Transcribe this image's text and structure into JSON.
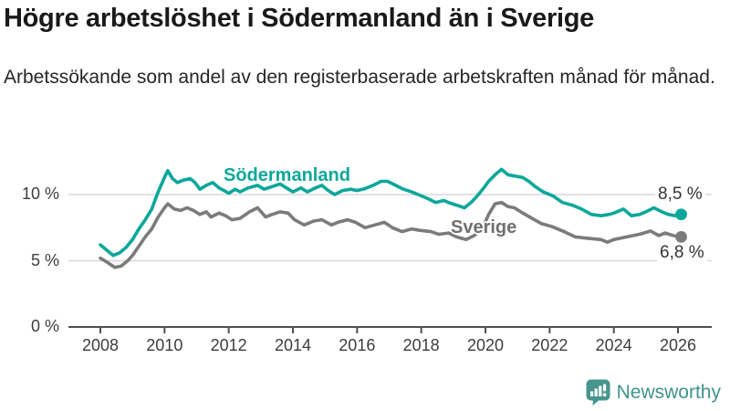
{
  "header": {
    "title": "Högre arbetslöshet i Södermanland än i Sverige",
    "subtitle": "Arbetssökande som andel av den registerbaserade arbetskraften månad för månad."
  },
  "colors": {
    "sodermanland_line": "#0ba79b",
    "sverige_line": "#7b7b7b",
    "grid": "#d8d8d8",
    "axis": "#4f4f4f",
    "logo_teal": "#46958e",
    "logo_text_teal": "#3f948d"
  },
  "chart_data": {
    "type": "line",
    "title": "Högre arbetslöshet i Södermanland än i Sverige",
    "subtitle": "Arbetssökande som andel av den registerbaserade arbetskraften månad för månad.",
    "xlabel": "",
    "ylabel": "",
    "grid": true,
    "legend_position": "inline-labels-on-lines",
    "xlim": [
      2007,
      2027
    ],
    "ylim": [
      0,
      12.5
    ],
    "x_axis": {
      "ticks": [
        2008,
        2010,
        2012,
        2014,
        2016,
        2018,
        2020,
        2022,
        2024,
        2026
      ],
      "tick_labels": [
        "2008",
        "2010",
        "2012",
        "2014",
        "2016",
        "2018",
        "2020",
        "2022",
        "2024",
        "2026"
      ]
    },
    "y_axis": {
      "ticks": [
        {
          "value": 10,
          "label": "10 %"
        },
        {
          "value": 5,
          "label": "5 %"
        },
        {
          "value": 0,
          "label": "0 %"
        }
      ]
    },
    "series": [
      {
        "name": "Södermanland",
        "color": "#0ba79b",
        "end_label": "8,5 %",
        "end_value": 8.5,
        "points": [
          [
            2008.0,
            6.2
          ],
          [
            2008.2,
            5.8
          ],
          [
            2008.4,
            5.4
          ],
          [
            2008.6,
            5.6
          ],
          [
            2008.8,
            6.0
          ],
          [
            2009.0,
            6.6
          ],
          [
            2009.2,
            7.4
          ],
          [
            2009.4,
            8.1
          ],
          [
            2009.6,
            8.9
          ],
          [
            2009.8,
            10.2
          ],
          [
            2010.0,
            11.3
          ],
          [
            2010.1,
            11.8
          ],
          [
            2010.25,
            11.2
          ],
          [
            2010.4,
            10.9
          ],
          [
            2010.6,
            11.1
          ],
          [
            2010.8,
            11.2
          ],
          [
            2010.95,
            10.9
          ],
          [
            2011.1,
            10.4
          ],
          [
            2011.3,
            10.7
          ],
          [
            2011.5,
            10.9
          ],
          [
            2011.7,
            10.5
          ],
          [
            2011.85,
            10.3
          ],
          [
            2012.0,
            10.1
          ],
          [
            2012.2,
            10.4
          ],
          [
            2012.35,
            10.2
          ],
          [
            2012.6,
            10.5
          ],
          [
            2012.9,
            10.7
          ],
          [
            2013.1,
            10.4
          ],
          [
            2013.35,
            10.6
          ],
          [
            2013.6,
            10.8
          ],
          [
            2013.8,
            10.5
          ],
          [
            2014.0,
            10.2
          ],
          [
            2014.25,
            10.5
          ],
          [
            2014.45,
            10.2
          ],
          [
            2014.7,
            10.5
          ],
          [
            2014.9,
            10.7
          ],
          [
            2015.1,
            10.3
          ],
          [
            2015.3,
            10.0
          ],
          [
            2015.55,
            10.3
          ],
          [
            2015.8,
            10.4
          ],
          [
            2016.0,
            10.3
          ],
          [
            2016.25,
            10.45
          ],
          [
            2016.5,
            10.7
          ],
          [
            2016.75,
            11.0
          ],
          [
            2016.95,
            11.0
          ],
          [
            2017.2,
            10.7
          ],
          [
            2017.45,
            10.4
          ],
          [
            2017.7,
            10.2
          ],
          [
            2017.9,
            10.0
          ],
          [
            2018.2,
            9.7
          ],
          [
            2018.45,
            9.4
          ],
          [
            2018.7,
            9.55
          ],
          [
            2018.9,
            9.35
          ],
          [
            2019.1,
            9.2
          ],
          [
            2019.35,
            9.0
          ],
          [
            2019.55,
            9.4
          ],
          [
            2019.75,
            9.9
          ],
          [
            2019.95,
            10.5
          ],
          [
            2020.1,
            11.0
          ],
          [
            2020.3,
            11.5
          ],
          [
            2020.5,
            11.9
          ],
          [
            2020.7,
            11.5
          ],
          [
            2020.9,
            11.4
          ],
          [
            2021.15,
            11.3
          ],
          [
            2021.35,
            11.0
          ],
          [
            2021.55,
            10.6
          ],
          [
            2021.8,
            10.2
          ],
          [
            2022.1,
            9.9
          ],
          [
            2022.4,
            9.4
          ],
          [
            2022.7,
            9.2
          ],
          [
            2023.0,
            8.9
          ],
          [
            2023.3,
            8.5
          ],
          [
            2023.6,
            8.4
          ],
          [
            2023.85,
            8.5
          ],
          [
            2024.0,
            8.6
          ],
          [
            2024.3,
            8.9
          ],
          [
            2024.55,
            8.4
          ],
          [
            2024.8,
            8.5
          ],
          [
            2025.0,
            8.7
          ],
          [
            2025.25,
            9.0
          ],
          [
            2025.5,
            8.7
          ],
          [
            2025.7,
            8.5
          ],
          [
            2025.9,
            8.4
          ],
          [
            2026.1,
            8.5
          ]
        ]
      },
      {
        "name": "Sverige",
        "color": "#7b7b7b",
        "end_label": "6,8 %",
        "end_value": 6.8,
        "points": [
          [
            2008.0,
            5.2
          ],
          [
            2008.2,
            4.9
          ],
          [
            2008.45,
            4.5
          ],
          [
            2008.65,
            4.6
          ],
          [
            2008.85,
            5.0
          ],
          [
            2009.0,
            5.4
          ],
          [
            2009.2,
            6.1
          ],
          [
            2009.4,
            6.8
          ],
          [
            2009.6,
            7.4
          ],
          [
            2009.8,
            8.3
          ],
          [
            2010.0,
            9.0
          ],
          [
            2010.1,
            9.3
          ],
          [
            2010.3,
            8.9
          ],
          [
            2010.5,
            8.8
          ],
          [
            2010.7,
            9.0
          ],
          [
            2010.9,
            8.8
          ],
          [
            2011.1,
            8.5
          ],
          [
            2011.3,
            8.7
          ],
          [
            2011.45,
            8.3
          ],
          [
            2011.7,
            8.6
          ],
          [
            2011.9,
            8.4
          ],
          [
            2012.1,
            8.1
          ],
          [
            2012.35,
            8.2
          ],
          [
            2012.65,
            8.7
          ],
          [
            2012.9,
            9.0
          ],
          [
            2013.15,
            8.3
          ],
          [
            2013.35,
            8.5
          ],
          [
            2013.6,
            8.7
          ],
          [
            2013.85,
            8.6
          ],
          [
            2014.05,
            8.1
          ],
          [
            2014.35,
            7.7
          ],
          [
            2014.65,
            8.0
          ],
          [
            2014.9,
            8.1
          ],
          [
            2015.2,
            7.7
          ],
          [
            2015.4,
            7.9
          ],
          [
            2015.7,
            8.1
          ],
          [
            2015.95,
            7.9
          ],
          [
            2016.25,
            7.5
          ],
          [
            2016.55,
            7.7
          ],
          [
            2016.85,
            7.9
          ],
          [
            2017.1,
            7.5
          ],
          [
            2017.4,
            7.2
          ],
          [
            2017.7,
            7.4
          ],
          [
            2017.95,
            7.3
          ],
          [
            2018.3,
            7.2
          ],
          [
            2018.55,
            7.0
          ],
          [
            2018.85,
            7.1
          ],
          [
            2019.1,
            6.8
          ],
          [
            2019.4,
            6.6
          ],
          [
            2019.65,
            6.9
          ],
          [
            2019.9,
            7.4
          ],
          [
            2020.1,
            8.5
          ],
          [
            2020.3,
            9.3
          ],
          [
            2020.5,
            9.4
          ],
          [
            2020.7,
            9.1
          ],
          [
            2020.9,
            9.0
          ],
          [
            2021.1,
            8.7
          ],
          [
            2021.45,
            8.2
          ],
          [
            2021.75,
            7.8
          ],
          [
            2022.05,
            7.6
          ],
          [
            2022.45,
            7.2
          ],
          [
            2022.8,
            6.8
          ],
          [
            2023.2,
            6.7
          ],
          [
            2023.6,
            6.6
          ],
          [
            2023.8,
            6.4
          ],
          [
            2024.0,
            6.6
          ],
          [
            2024.4,
            6.8
          ],
          [
            2024.8,
            7.0
          ],
          [
            2025.15,
            7.25
          ],
          [
            2025.4,
            6.9
          ],
          [
            2025.6,
            7.1
          ],
          [
            2025.85,
            6.9
          ],
          [
            2026.1,
            6.8
          ]
        ]
      }
    ]
  },
  "footer": {
    "brand": "Newsworthy",
    "logo_icon": "bar-chart-speech-bubble-icon"
  }
}
